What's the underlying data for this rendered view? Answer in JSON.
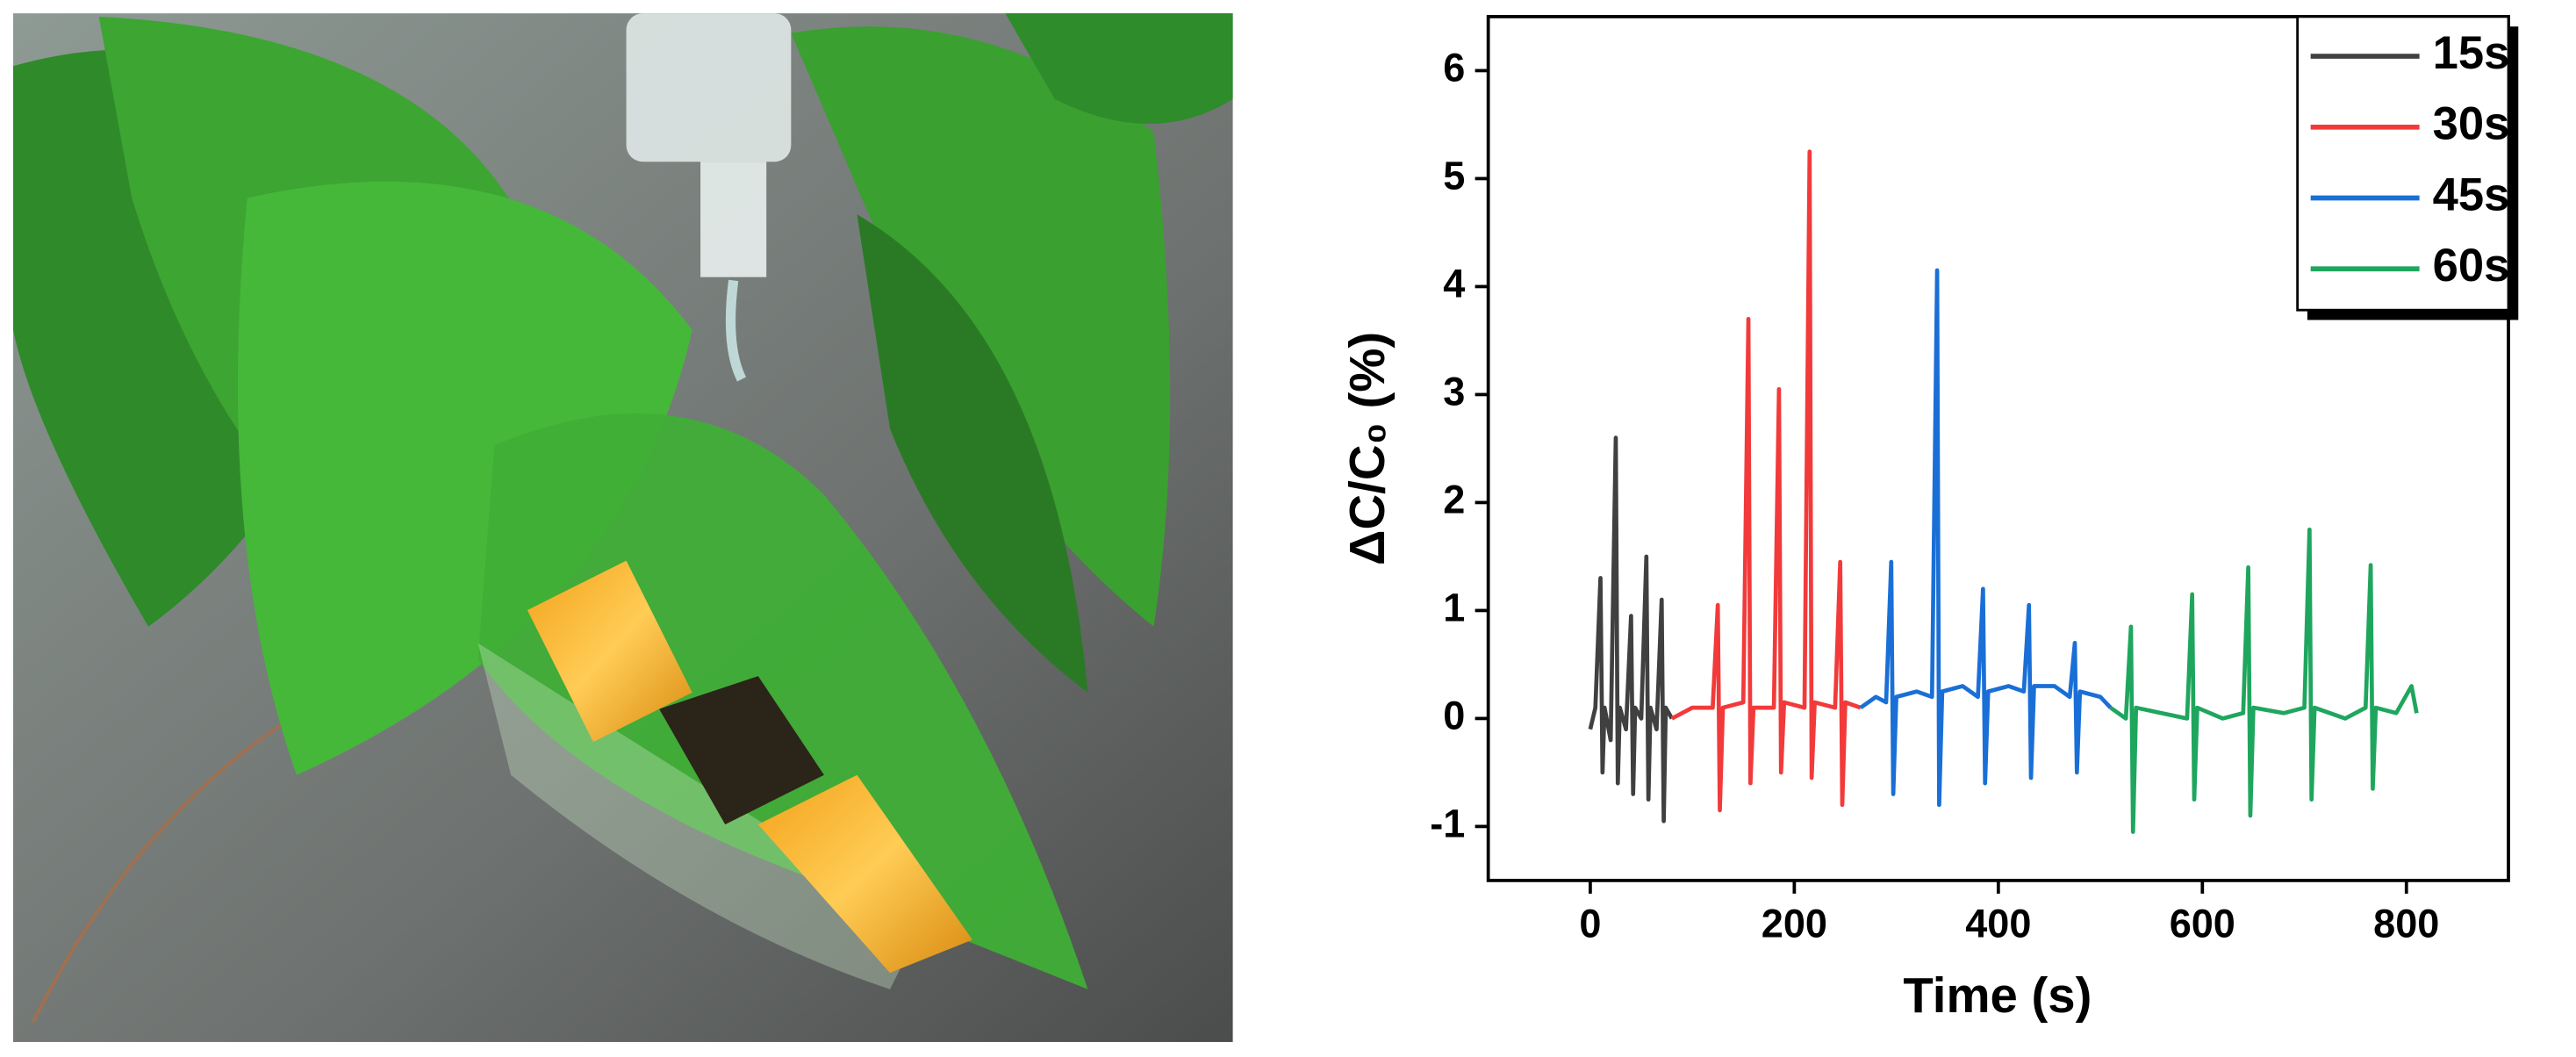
{
  "chart_data": {
    "type": "line",
    "x_label": "Time (s)",
    "y_label": "ΔC/C₀ (%)",
    "xlim": [
      -100,
      900
    ],
    "xticks": [
      0,
      200,
      400,
      600,
      800
    ],
    "ylim": [
      -1.5,
      6.5
    ],
    "yticks": [
      -1,
      0,
      1,
      2,
      3,
      4,
      5,
      6
    ],
    "legend": "upper right",
    "series": [
      {
        "name": "15s",
        "color": "#404040",
        "x": [
          0,
          5,
          10,
          12,
          14,
          20,
          25,
          27,
          29,
          35,
          40,
          42,
          44,
          50,
          55,
          57,
          59,
          65,
          70,
          72,
          74,
          80
        ],
        "values": [
          -0.1,
          0.1,
          1.3,
          -0.5,
          0.1,
          -0.2,
          2.6,
          -0.6,
          0.1,
          -0.1,
          0.95,
          -0.7,
          0.1,
          0.0,
          1.5,
          -0.75,
          0.1,
          -0.1,
          1.1,
          -0.95,
          0.1,
          0.0
        ]
      },
      {
        "name": "30s",
        "color": "#f23a3a",
        "x": [
          80,
          100,
          120,
          125,
          127,
          130,
          150,
          155,
          157,
          160,
          180,
          185,
          187,
          190,
          210,
          215,
          217,
          220,
          240,
          245,
          247,
          250,
          265
        ],
        "values": [
          0.0,
          0.1,
          0.1,
          1.05,
          -0.85,
          0.1,
          0.15,
          3.7,
          -0.6,
          0.1,
          0.1,
          3.05,
          -0.5,
          0.15,
          0.1,
          5.25,
          -0.55,
          0.15,
          0.1,
          1.45,
          -0.8,
          0.15,
          0.1
        ]
      },
      {
        "name": "45s",
        "color": "#1a6fd6",
        "x": [
          265,
          280,
          290,
          295,
          297,
          300,
          320,
          335,
          340,
          342,
          345,
          365,
          380,
          385,
          387,
          390,
          410,
          425,
          430,
          432,
          435,
          455,
          470,
          475,
          477,
          480,
          500,
          510
        ],
        "values": [
          0.1,
          0.2,
          0.15,
          1.45,
          -0.7,
          0.2,
          0.25,
          0.2,
          4.15,
          -0.8,
          0.25,
          0.3,
          0.2,
          1.2,
          -0.6,
          0.25,
          0.3,
          0.25,
          1.05,
          -0.55,
          0.3,
          0.3,
          0.2,
          0.7,
          -0.5,
          0.25,
          0.2,
          0.1
        ]
      },
      {
        "name": "60s",
        "color": "#1fa65e",
        "x": [
          510,
          525,
          530,
          532,
          535,
          560,
          585,
          590,
          592,
          595,
          620,
          640,
          645,
          647,
          650,
          680,
          700,
          705,
          707,
          710,
          740,
          760,
          765,
          767,
          770,
          790,
          805,
          810
        ],
        "values": [
          0.1,
          0.0,
          0.85,
          -1.05,
          0.1,
          0.05,
          0.0,
          1.15,
          -0.75,
          0.1,
          0.0,
          0.05,
          1.4,
          -0.9,
          0.1,
          0.05,
          0.1,
          1.75,
          -0.75,
          0.1,
          0.0,
          0.1,
          1.42,
          -0.65,
          0.1,
          0.05,
          0.3,
          0.05
        ]
      }
    ]
  }
}
